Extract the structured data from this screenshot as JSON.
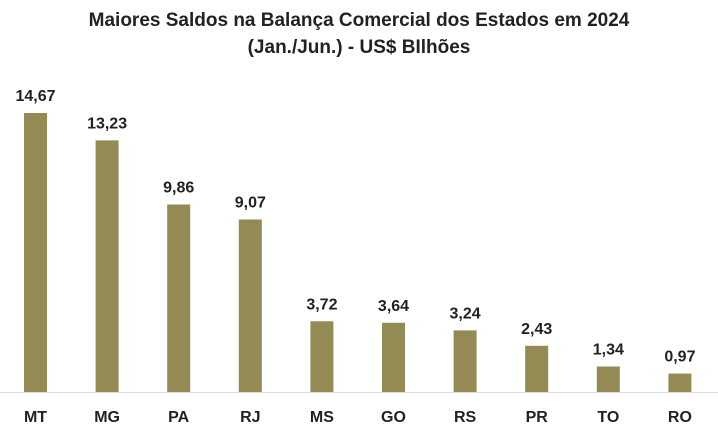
{
  "chart_data": {
    "type": "bar",
    "title": "Maiores Saldos na Balança Comercial dos Estados  em 2024",
    "subtitle": "(Jan./Jun.) - US$ BIlhões",
    "categories": [
      "MT",
      "MG",
      "PA",
      "RJ",
      "MS",
      "GO",
      "RS",
      "PR",
      "TO",
      "RO"
    ],
    "values": [
      14.67,
      13.23,
      9.86,
      9.07,
      3.72,
      3.64,
      3.24,
      2.43,
      1.34,
      0.97
    ],
    "value_labels": [
      "14,67",
      "13,23",
      "9,86",
      "9,07",
      "3,72",
      "3,64",
      "3,24",
      "2,43",
      "1,34",
      "0,97"
    ],
    "ylim": [
      0,
      14.67
    ],
    "grid": false,
    "legend": "none",
    "bar_color": "#948A54",
    "axis_color": "#D9D9D9"
  }
}
